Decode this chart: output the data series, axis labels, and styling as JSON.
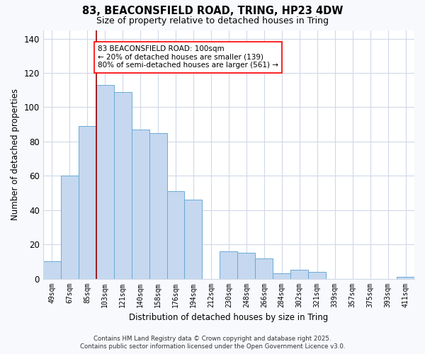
{
  "title_line1": "83, BEACONSFIELD ROAD, TRING, HP23 4DW",
  "title_line2": "Size of property relative to detached houses in Tring",
  "xlabel": "Distribution of detached houses by size in Tring",
  "ylabel": "Number of detached properties",
  "categories": [
    "49sqm",
    "67sqm",
    "85sqm",
    "103sqm",
    "121sqm",
    "140sqm",
    "158sqm",
    "176sqm",
    "194sqm",
    "212sqm",
    "230sqm",
    "248sqm",
    "266sqm",
    "284sqm",
    "302sqm",
    "321sqm",
    "339sqm",
    "357sqm",
    "375sqm",
    "393sqm",
    "411sqm"
  ],
  "values": [
    10,
    60,
    89,
    113,
    109,
    87,
    85,
    51,
    46,
    0,
    16,
    15,
    12,
    3,
    5,
    4,
    0,
    0,
    0,
    0,
    1
  ],
  "bar_color": "#c5d8f0",
  "bar_edge_color": "#6aaad4",
  "red_line_index": 3,
  "ylim": [
    0,
    145
  ],
  "yticks": [
    0,
    20,
    40,
    60,
    80,
    100,
    120,
    140
  ],
  "annotation_title": "83 BEACONSFIELD ROAD: 100sqm",
  "annotation_line2": "← 20% of detached houses are smaller (139)",
  "annotation_line3": "80% of semi-detached houses are larger (561) →",
  "footer_line1": "Contains HM Land Registry data © Crown copyright and database right 2025.",
  "footer_line2": "Contains public sector information licensed under the Open Government Licence v3.0.",
  "bg_color": "#f7f9fc",
  "plot_bg_color": "#ffffff",
  "grid_color": "#d0d8e8"
}
